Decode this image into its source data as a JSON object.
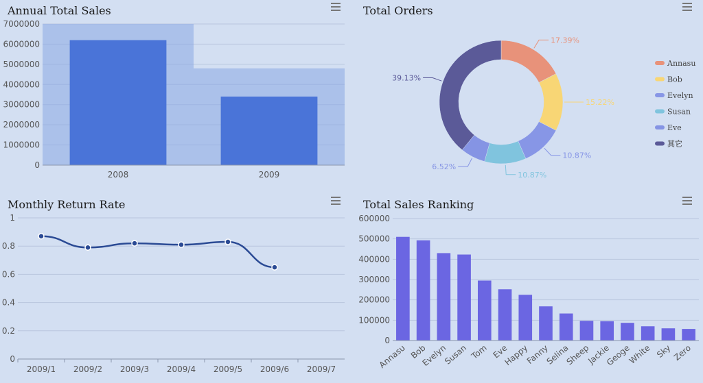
{
  "panels": {
    "annual": {
      "title": "Annual Total Sales"
    },
    "orders": {
      "title": "Total Orders"
    },
    "monthly": {
      "title": "Monthly Return Rate"
    },
    "ranking": {
      "title": "Total Sales Ranking"
    }
  },
  "colors": {
    "bar": "#4a74d8",
    "rank_bar": "#6b66e2",
    "line": "#2a4a94",
    "highlight": "#8ba7e4"
  },
  "chart_data": [
    {
      "id": "annual",
      "type": "bar",
      "title": "Annual Total Sales",
      "categories": [
        "2008",
        "2009"
      ],
      "values": [
        6200000,
        3400000
      ],
      "highlight_values": [
        7000000,
        4800000
      ],
      "ylim": [
        0,
        7000000
      ],
      "yticks": [
        0,
        1000000,
        2000000,
        3000000,
        4000000,
        5000000,
        6000000,
        7000000
      ]
    },
    {
      "id": "orders",
      "type": "pie",
      "title": "Total Orders",
      "slices": [
        {
          "name": "Annasu",
          "value": 17.39,
          "label": "17.39%",
          "color": "#e8927a"
        },
        {
          "name": "Bob",
          "value": 15.22,
          "label": "15.22%",
          "color": "#f8d675"
        },
        {
          "name": "Evelyn",
          "value": 10.87,
          "label": "10.87%",
          "color": "#8796e6"
        },
        {
          "name": "Susan",
          "value": 10.87,
          "label": "10.87%",
          "color": "#80c4de"
        },
        {
          "name": "Eve",
          "value": 6.52,
          "label": "6.52%",
          "color": "#8594e4"
        },
        {
          "name": "其它",
          "value": 39.13,
          "label": "39.13%",
          "color": "#5b5a98"
        }
      ]
    },
    {
      "id": "monthly",
      "type": "line",
      "title": "Monthly Return Rate",
      "categories": [
        "2009/1",
        "2009/2",
        "2009/3",
        "2009/4",
        "2009/5",
        "2009/6",
        "2009/7"
      ],
      "values": [
        0.87,
        0.79,
        0.82,
        0.81,
        0.83,
        0.65,
        null
      ],
      "ylim": [
        0,
        1
      ],
      "yticks": [
        0,
        0.2,
        0.4,
        0.6,
        0.8,
        1
      ]
    },
    {
      "id": "ranking",
      "type": "bar",
      "title": "Total Sales Ranking",
      "categories": [
        "Annasu",
        "Bob",
        "Evelyn",
        "Susan",
        "Tom",
        "Eve",
        "Happy",
        "Fanny",
        "Selina",
        "Sheep",
        "Jackie",
        "Geoge",
        "White",
        "Sky",
        "Zero"
      ],
      "values": [
        510000,
        493000,
        430000,
        423000,
        295000,
        252000,
        225000,
        168000,
        133000,
        97000,
        95000,
        87000,
        70000,
        60000,
        57000
      ],
      "ylim": [
        0,
        600000
      ],
      "yticks": [
        0,
        100000,
        200000,
        300000,
        400000,
        500000,
        600000
      ]
    }
  ]
}
